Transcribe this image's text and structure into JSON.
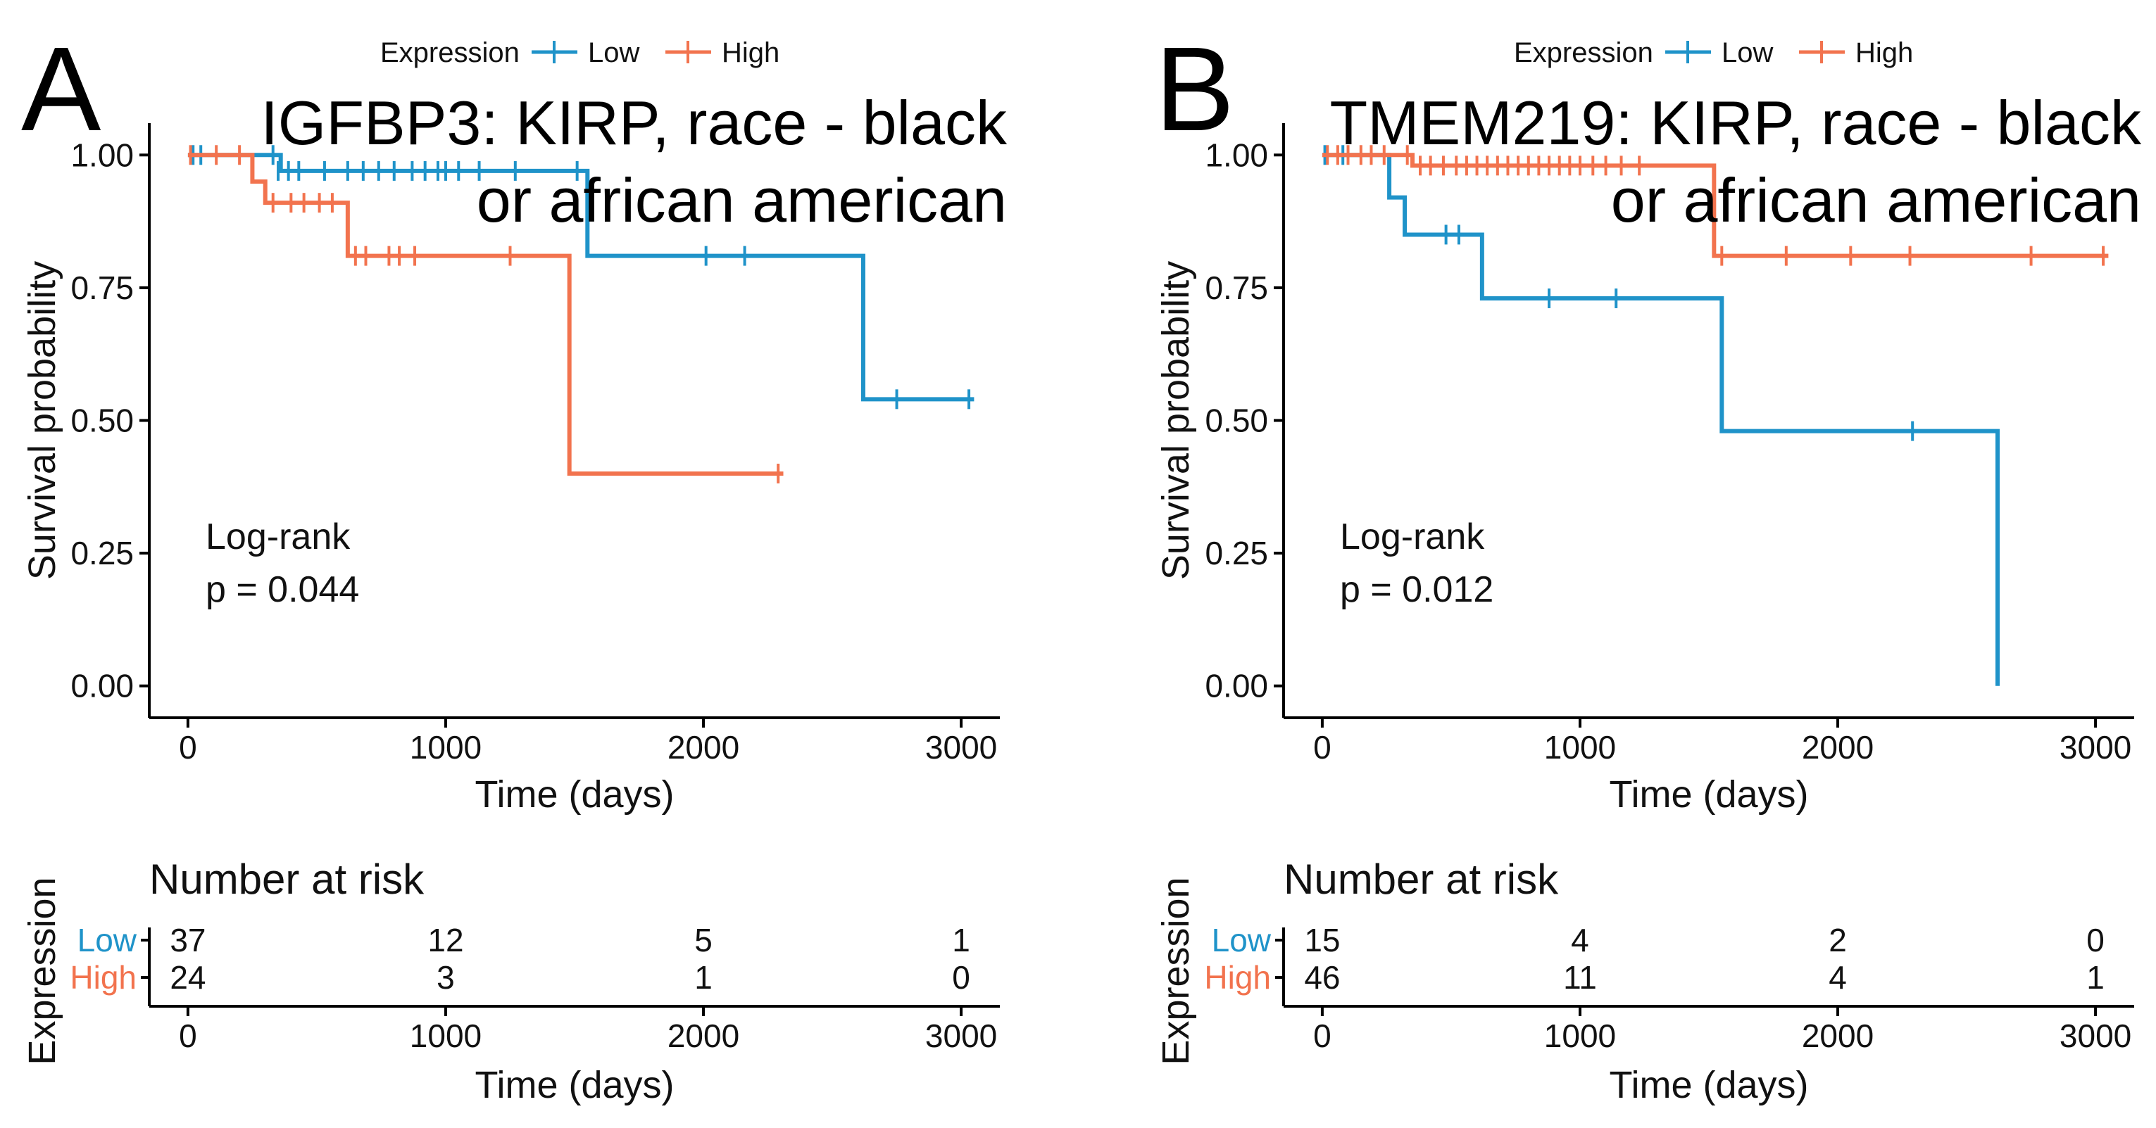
{
  "colors": {
    "low": "#1f93c9",
    "high": "#f2734e",
    "axis": "#000000",
    "text": "#111111"
  },
  "legend": {
    "title": "Expression",
    "low_label": "Low",
    "high_label": "High"
  },
  "risk_table": {
    "title": "Number at risk",
    "ylabel": "Expression",
    "xlabel": "Time (days)",
    "low_label": "Low",
    "high_label": "High"
  },
  "chart_data": [
    {
      "type": "line",
      "panel_label": "A",
      "title_line1": "IGFBP3: KIRP, race - black",
      "title_line2": "or african american",
      "xlabel": "Time (days)",
      "ylabel": "Survival probability",
      "xlim": [
        -150,
        3150
      ],
      "ylim": [
        -0.06,
        1.06
      ],
      "xticks": [
        "0",
        "1000",
        "2000",
        "3000"
      ],
      "yticks": [
        "0.00",
        "0.25",
        "0.50",
        "0.75",
        "1.00"
      ],
      "annotation_line1": "Log-rank",
      "annotation_line2": "p = 0.044",
      "series": [
        {
          "name": "Low",
          "steps": [
            [
              0,
              1.0
            ],
            [
              360,
              0.97
            ],
            [
              1550,
              0.81
            ],
            [
              2620,
              0.54
            ],
            [
              3050,
              0.54
            ]
          ],
          "censors": [
            [
              20,
              1.0
            ],
            [
              50,
              1.0
            ],
            [
              330,
              1.0
            ],
            [
              350,
              0.97
            ],
            [
              390,
              0.97
            ],
            [
              430,
              0.97
            ],
            [
              530,
              0.97
            ],
            [
              620,
              0.97
            ],
            [
              680,
              0.97
            ],
            [
              740,
              0.97
            ],
            [
              800,
              0.97
            ],
            [
              870,
              0.97
            ],
            [
              920,
              0.97
            ],
            [
              970,
              0.97
            ],
            [
              1000,
              0.97
            ],
            [
              1050,
              0.97
            ],
            [
              1130,
              0.97
            ],
            [
              1270,
              0.97
            ],
            [
              1510,
              0.97
            ],
            [
              2010,
              0.81
            ],
            [
              2160,
              0.81
            ],
            [
              2750,
              0.54
            ],
            [
              3030,
              0.54
            ]
          ]
        },
        {
          "name": "High",
          "steps": [
            [
              0,
              1.0
            ],
            [
              250,
              0.95
            ],
            [
              300,
              0.91
            ],
            [
              620,
              0.81
            ],
            [
              1480,
              0.4
            ],
            [
              2310,
              0.4
            ]
          ],
          "censors": [
            [
              10,
              1.0
            ],
            [
              110,
              1.0
            ],
            [
              200,
              1.0
            ],
            [
              330,
              0.91
            ],
            [
              400,
              0.91
            ],
            [
              450,
              0.91
            ],
            [
              510,
              0.91
            ],
            [
              560,
              0.91
            ],
            [
              650,
              0.81
            ],
            [
              690,
              0.81
            ],
            [
              780,
              0.81
            ],
            [
              820,
              0.81
            ],
            [
              880,
              0.81
            ],
            [
              1250,
              0.81
            ],
            [
              2290,
              0.4
            ]
          ]
        }
      ],
      "risk_table": {
        "times": [
          "0",
          "1000",
          "2000",
          "3000"
        ],
        "low": [
          "37",
          "12",
          "5",
          "1"
        ],
        "high": [
          "24",
          "3",
          "1",
          "0"
        ]
      }
    },
    {
      "type": "line",
      "panel_label": "B",
      "title_line1": "TMEM219: KIRP, race - black",
      "title_line2": "or african american",
      "xlabel": "Time (days)",
      "ylabel": "Survival probability",
      "xlim": [
        -150,
        3150
      ],
      "ylim": [
        -0.06,
        1.06
      ],
      "xticks": [
        "0",
        "1000",
        "2000",
        "3000"
      ],
      "yticks": [
        "0.00",
        "0.25",
        "0.50",
        "0.75",
        "1.00"
      ],
      "annotation_line1": "Log-rank",
      "annotation_line2": "p = 0.012",
      "series": [
        {
          "name": "Low",
          "steps": [
            [
              0,
              1.0
            ],
            [
              260,
              0.92
            ],
            [
              320,
              0.85
            ],
            [
              620,
              0.73
            ],
            [
              1550,
              0.48
            ],
            [
              2620,
              0.0
            ]
          ],
          "censors": [
            [
              10,
              1.0
            ],
            [
              80,
              1.0
            ],
            [
              480,
              0.85
            ],
            [
              530,
              0.85
            ],
            [
              880,
              0.73
            ],
            [
              1140,
              0.73
            ],
            [
              2290,
              0.48
            ]
          ]
        },
        {
          "name": "High",
          "steps": [
            [
              0,
              1.0
            ],
            [
              350,
              0.98
            ],
            [
              1490,
              0.98
            ],
            [
              1490,
              0.98
            ],
            [
              1490,
              0.98
            ],
            [
              1490,
              0.98
            ],
            [
              1490,
              0.98
            ],
            [
              1490,
              0.98
            ],
            [
              1490,
              0.98
            ],
            [
              1490,
              0.98
            ],
            [
              1490,
              0.98
            ],
            [
              1490,
              0.98
            ],
            [
              1490,
              0.98
            ],
            [
              1490,
              0.98
            ],
            [
              1490,
              0.98
            ],
            [
              1490,
              0.98
            ],
            [
              1490,
              0.98
            ],
            [
              1490,
              0.98
            ],
            [
              1490,
              0.98
            ],
            [
              1520,
              0.81
            ],
            [
              3050,
              0.81
            ]
          ],
          "censors": [
            [
              20,
              1.0
            ],
            [
              60,
              1.0
            ],
            [
              100,
              1.0
            ],
            [
              150,
              1.0
            ],
            [
              190,
              1.0
            ],
            [
              240,
              1.0
            ],
            [
              330,
              1.0
            ],
            [
              380,
              0.98
            ],
            [
              420,
              0.98
            ],
            [
              470,
              0.98
            ],
            [
              520,
              0.98
            ],
            [
              560,
              0.98
            ],
            [
              600,
              0.98
            ],
            [
              640,
              0.98
            ],
            [
              680,
              0.98
            ],
            [
              720,
              0.98
            ],
            [
              760,
              0.98
            ],
            [
              800,
              0.98
            ],
            [
              840,
              0.98
            ],
            [
              880,
              0.98
            ],
            [
              920,
              0.98
            ],
            [
              960,
              0.98
            ],
            [
              1000,
              0.98
            ],
            [
              1050,
              0.98
            ],
            [
              1100,
              0.98
            ],
            [
              1160,
              0.98
            ],
            [
              1230,
              0.98
            ],
            [
              1550,
              0.81
            ],
            [
              1800,
              0.81
            ],
            [
              2050,
              0.81
            ],
            [
              2280,
              0.81
            ],
            [
              2750,
              0.81
            ],
            [
              3030,
              0.81
            ]
          ]
        }
      ],
      "risk_table": {
        "times": [
          "0",
          "1000",
          "2000",
          "3000"
        ],
        "low": [
          "15",
          "4",
          "2",
          "0"
        ],
        "high": [
          "46",
          "11",
          "4",
          "1"
        ]
      }
    }
  ]
}
